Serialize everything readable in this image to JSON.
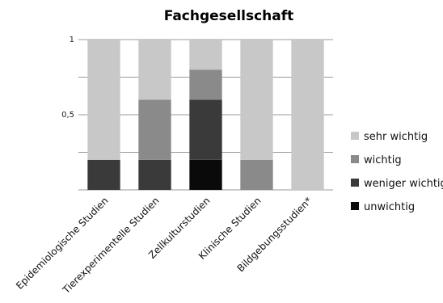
{
  "chart_data": {
    "type": "bar",
    "stacked": true,
    "title": "Fachgesellschaft",
    "xlabel": "",
    "ylabel": "",
    "ylim": [
      0,
      1
    ],
    "yticks": [
      {
        "value": 1,
        "label": "1"
      },
      {
        "value": 0.5,
        "label": "0,5"
      }
    ],
    "gridlines": [
      0.25,
      0.5,
      0.75,
      1.0
    ],
    "legend_position": "right",
    "categories": [
      "Epidemiologische Studien",
      "Tierexperimentelle Studien",
      "Zellkulturstudien",
      "Klinische Studien",
      "Bildgebungsstudien*"
    ],
    "series": [
      {
        "name": "unwichtig",
        "color": "#0a0a0a",
        "values": [
          0,
          0,
          0.2,
          0,
          0
        ]
      },
      {
        "name": "weniger wichtig",
        "color": "#3a3a3a",
        "values": [
          0.2,
          0.2,
          0.4,
          0,
          0
        ]
      },
      {
        "name": "wichtig",
        "color": "#8a8a8a",
        "values": [
          0,
          0.4,
          0.2,
          0.2,
          0
        ]
      },
      {
        "name": "sehr wichtig",
        "color": "#c8c8c8",
        "values": [
          0.8,
          0.4,
          0.2,
          0.8,
          1.0
        ]
      }
    ],
    "legend_order": [
      "sehr wichtig",
      "wichtig",
      "weniger wichtig",
      "unwichtig"
    ]
  }
}
